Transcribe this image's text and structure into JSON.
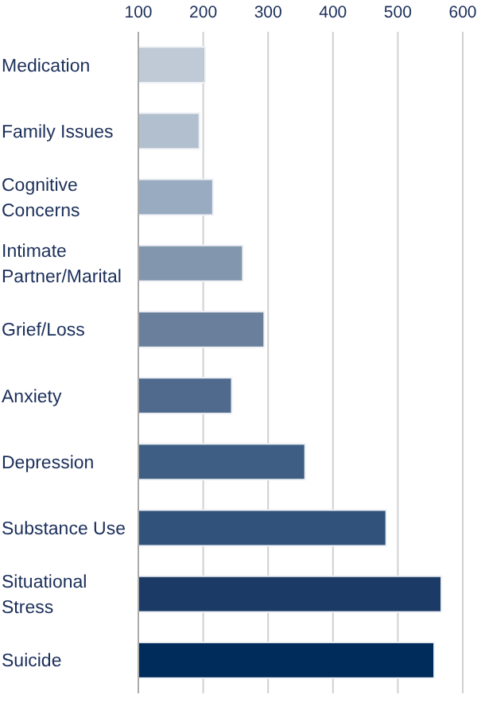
{
  "chart_data": {
    "type": "bar",
    "orientation": "horizontal",
    "categories": [
      "Medication",
      "Family Issues",
      "Cognitive Concerns",
      "Intimate Partner/Marital",
      "Grief/Loss",
      "Anxiety",
      "Depression",
      "Substance Use",
      "Situational Stress",
      "Suicide"
    ],
    "values": [
      203,
      194,
      215,
      261,
      294,
      244,
      357,
      482,
      567,
      556
    ],
    "colors": [
      "#c0cad6",
      "#b2bfce",
      "#99abc0",
      "#8296ae",
      "#697f9c",
      "#4f6a8d",
      "#3f5e84",
      "#30527b",
      "#1b3a66",
      "#002c5c"
    ],
    "xlim": [
      100,
      600
    ],
    "xticks": [
      100,
      200,
      300,
      400,
      500,
      600
    ],
    "grid": "x"
  }
}
